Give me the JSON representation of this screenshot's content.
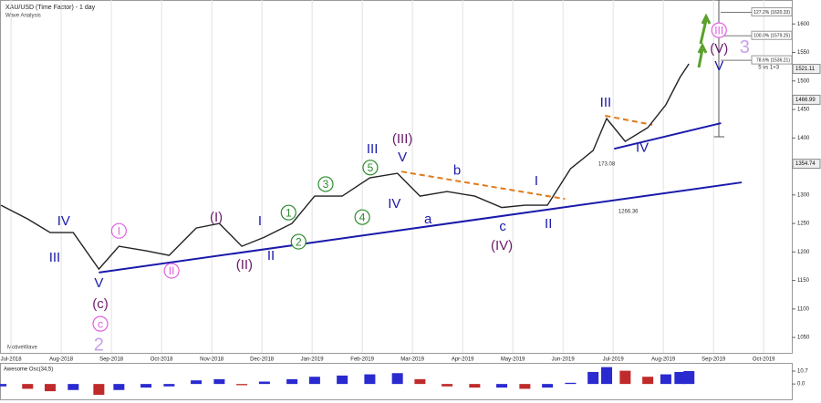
{
  "chart_data": {
    "type": "line",
    "title": "XAU/USD (Time Factor) - 1 day",
    "subtitle": "Wave Analysis",
    "footer": "MotiveWave",
    "color": "#222222",
    "grid": true,
    "x": [
      -0.2,
      0.33,
      0.78,
      1.24,
      1.75,
      2.15,
      2.69,
      3.15,
      3.69,
      4.15,
      4.6,
      5.05,
      5.6,
      6.05,
      6.6,
      7.15,
      7.7,
      8.15,
      8.69,
      9.24,
      9.78,
      10.24,
      10.69,
      11.15,
      11.6,
      11.87,
      12.24,
      12.69,
      13.05,
      13.33,
      13.51
    ],
    "values": [
      1282,
      1258,
      1234,
      1234,
      1170,
      1210,
      1202,
      1194,
      1242,
      1250,
      1210,
      1226,
      1250,
      1298,
      1298,
      1330,
      1338,
      1298,
      1306,
      1298,
      1278,
      1282,
      1282,
      1346,
      1378,
      1434,
      1394,
      1418,
      1458,
      1506,
      1530
    ],
    "xlim": [
      -0.22,
      15.56
    ],
    "xticks": [
      {
        "value": 0,
        "label": "Jul-2018"
      },
      {
        "value": 1,
        "label": "Aug-2018"
      },
      {
        "value": 2,
        "label": "Sep-2018"
      },
      {
        "value": 3,
        "label": "Oct-2018"
      },
      {
        "value": 4,
        "label": "Nov-2018"
      },
      {
        "value": 5,
        "label": "Dec-2018"
      },
      {
        "value": 6,
        "label": "Jan-2019"
      },
      {
        "value": 7,
        "label": "Feb-2019"
      },
      {
        "value": 8,
        "label": "Mar-2019"
      },
      {
        "value": 9,
        "label": "Apr-2019"
      },
      {
        "value": 10,
        "label": "May-2019"
      },
      {
        "value": 11,
        "label": "Jun-2019"
      },
      {
        "value": 12,
        "label": "Jul-2019"
      },
      {
        "value": 13,
        "label": "Aug-2019"
      },
      {
        "value": 14,
        "label": "Sep-2019"
      },
      {
        "value": 15,
        "label": "Oct-2019"
      }
    ],
    "ylim": [
      1023,
      1642
    ],
    "yticks": [
      1050,
      1100,
      1150,
      1200,
      1250,
      1300,
      1350,
      1400,
      1450,
      1500,
      1550,
      1600
    ],
    "price_labels": [
      1521.11,
      1466.99,
      1354.74
    ],
    "fib_levels": [
      {
        "value": 1620.33,
        "label": "127.2% (1620.33)"
      },
      {
        "value": 1579.25,
        "label": "100.0% (1579.25)"
      },
      {
        "value": 1536.21,
        "label": "78.6% (1536.21)"
      }
    ],
    "notes": [
      {
        "text": "5 vs 1+3",
        "x": 15.1,
        "y": 1524
      },
      {
        "text": "173.08",
        "x": 11.87,
        "y": 1354
      },
      {
        "text": "1266.36",
        "x": 12.3,
        "y": 1271
      }
    ],
    "trendlines": [
      {
        "x": [
          1.75,
          14.56
        ],
        "y": [
          1164,
          1322
        ],
        "color": "#1a1aaa",
        "dashed": false
      },
      {
        "x": [
          12.02,
          14.15
        ],
        "y": [
          1381,
          1426
        ],
        "color": "#1a1aaa",
        "dashed": false
      },
      {
        "x": [
          7.78,
          11.04
        ],
        "y": [
          1341,
          1293
        ],
        "color": "#e07a1a",
        "dashed": true
      },
      {
        "x": [
          11.84,
          12.78
        ],
        "y": [
          1439,
          1423
        ],
        "color": "#e07a1a",
        "dashed": true
      }
    ],
    "annotations": [
      {
        "text": "IV",
        "x": 1.05,
        "y": 1255,
        "color": "#1a1aaa",
        "style": "plain"
      },
      {
        "text": "III",
        "x": 0.87,
        "y": 1191,
        "color": "#1a1aaa",
        "style": "plain"
      },
      {
        "text": "V",
        "x": 1.75,
        "y": 1146,
        "color": "#1a1aaa",
        "style": "plain"
      },
      {
        "text": "(c)",
        "x": 1.78,
        "y": 1109,
        "color": "#6b1a6b",
        "style": "plain"
      },
      {
        "text": "c",
        "x": 1.78,
        "y": 1074,
        "color": "#e060e0",
        "style": "circled"
      },
      {
        "text": "2",
        "x": 1.75,
        "y": 1037,
        "color": "#c8a0e8",
        "style": "large"
      },
      {
        "text": "I",
        "x": 2.15,
        "y": 1237,
        "color": "#e060e0",
        "style": "circled"
      },
      {
        "text": "II",
        "x": 3.2,
        "y": 1167,
        "color": "#e060e0",
        "style": "circled"
      },
      {
        "text": "(I)",
        "x": 4.09,
        "y": 1261,
        "color": "#6b1a6b",
        "style": "plain"
      },
      {
        "text": "(II)",
        "x": 4.65,
        "y": 1178,
        "color": "#6b1a6b",
        "style": "plain"
      },
      {
        "text": "I",
        "x": 4.96,
        "y": 1255,
        "color": "#1a1aaa",
        "style": "plain"
      },
      {
        "text": "II",
        "x": 5.18,
        "y": 1194,
        "color": "#1a1aaa",
        "style": "plain"
      },
      {
        "text": "1",
        "x": 5.53,
        "y": 1269,
        "color": "#2a8a2a",
        "style": "circled"
      },
      {
        "text": "2",
        "x": 5.73,
        "y": 1218,
        "color": "#2a8a2a",
        "style": "circled"
      },
      {
        "text": "3",
        "x": 6.27,
        "y": 1319,
        "color": "#2a8a2a",
        "style": "circled"
      },
      {
        "text": "4",
        "x": 7.0,
        "y": 1261,
        "color": "#2a8a2a",
        "style": "circled"
      },
      {
        "text": "5",
        "x": 7.16,
        "y": 1348,
        "color": "#2a8a2a",
        "style": "circled"
      },
      {
        "text": "III",
        "x": 7.2,
        "y": 1381,
        "color": "#1a1aaa",
        "style": "plain"
      },
      {
        "text": "(III)",
        "x": 7.8,
        "y": 1399,
        "color": "#6b1a6b",
        "style": "plain"
      },
      {
        "text": "V",
        "x": 7.8,
        "y": 1367,
        "color": "#1a1aaa",
        "style": "plain"
      },
      {
        "text": "IV",
        "x": 7.64,
        "y": 1285,
        "color": "#1a1aaa",
        "style": "plain"
      },
      {
        "text": "a",
        "x": 8.31,
        "y": 1258,
        "color": "#1a1aaa",
        "style": "plain"
      },
      {
        "text": "b",
        "x": 8.89,
        "y": 1344,
        "color": "#1a1aaa",
        "style": "plain"
      },
      {
        "text": "c",
        "x": 9.8,
        "y": 1245,
        "color": "#1a1aaa",
        "style": "plain"
      },
      {
        "text": "(IV)",
        "x": 9.78,
        "y": 1212,
        "color": "#6b1a6b",
        "style": "plain"
      },
      {
        "text": "I",
        "x": 10.47,
        "y": 1325,
        "color": "#1a1aaa",
        "style": "plain"
      },
      {
        "text": "II",
        "x": 10.71,
        "y": 1250,
        "color": "#1a1aaa",
        "style": "plain"
      },
      {
        "text": "III",
        "x": 11.85,
        "y": 1463,
        "color": "#1a1aaa",
        "style": "plain"
      },
      {
        "text": "IV",
        "x": 12.58,
        "y": 1384,
        "color": "#1a1aaa",
        "style": "plain"
      },
      {
        "text": "V",
        "x": 14.11,
        "y": 1527,
        "color": "#1a1aaa",
        "style": "plain"
      },
      {
        "text": "(V)",
        "x": 14.11,
        "y": 1557,
        "color": "#6b1a6b",
        "style": "plain"
      },
      {
        "text": "III",
        "x": 14.11,
        "y": 1589,
        "color": "#e060e0",
        "style": "circled"
      },
      {
        "text": "3",
        "x": 14.62,
        "y": 1559,
        "color": "#c8a0e8",
        "style": "large"
      }
    ],
    "oscillator": {
      "title": "Awesome Osc(34,5)",
      "up_color": "#2a2ad0",
      "down_color": "#c02a2a",
      "values": [
        -2,
        -4,
        -6,
        -5,
        -9,
        -5,
        -3,
        -2,
        3,
        4,
        -1,
        2,
        4,
        6,
        7,
        8,
        9,
        4,
        -2,
        -3,
        -3,
        -4,
        -3,
        1,
        10,
        14,
        11,
        6,
        8,
        10,
        10.7
      ],
      "ylim": [
        -12,
        16
      ],
      "yticks": [
        {
          "value": 0,
          "label": "0.0"
        },
        10.7
      ]
    }
  }
}
